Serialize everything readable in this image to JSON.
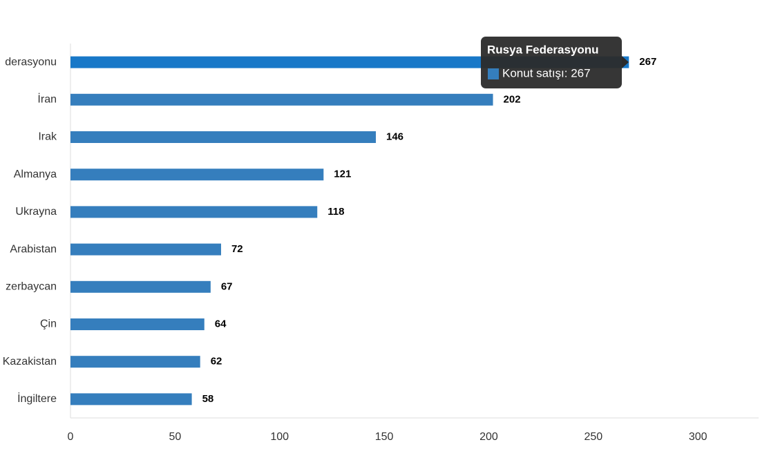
{
  "chart_data": {
    "type": "hbar",
    "categories": [
      "derasyonu",
      "İran",
      "Irak",
      "Almanya",
      "Ukrayna",
      "Arabistan",
      "zerbaycan",
      "Çin",
      "Kazakistan",
      "İngiltere"
    ],
    "values": [
      267,
      202,
      146,
      121,
      118,
      72,
      67,
      64,
      62,
      58
    ],
    "colors": [
      "#1878c8",
      "#357ebd",
      "#357ebd",
      "#357ebd",
      "#357ebd",
      "#357ebd",
      "#357ebd",
      "#357ebd",
      "#357ebd",
      "#357ebd"
    ],
    "xlim": [
      0,
      329
    ],
    "xticks": [
      0,
      50,
      100,
      150,
      200,
      250,
      300
    ],
    "tooltip": {
      "title": "Rusya Federasyonu",
      "text": "Konut satışı: 267",
      "color": "#357ebd"
    }
  }
}
